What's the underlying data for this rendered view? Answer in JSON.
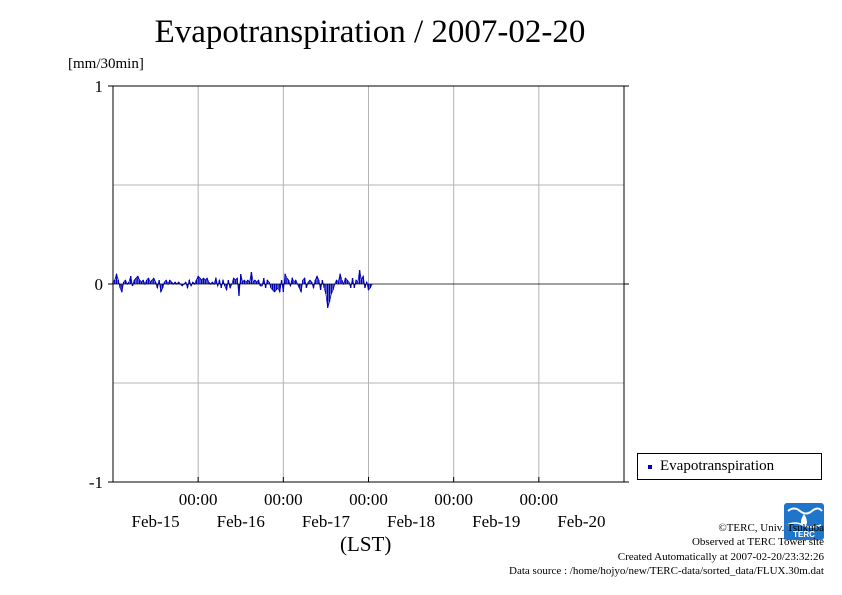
{
  "title": "Evapotranspiration / 2007-02-20",
  "y_unit": "[mm/30min]",
  "x_unit": "(LST)",
  "colors": {
    "series": "#0000bb",
    "grid": "#b4b4b4",
    "axis": "#000000",
    "logo": "#1f75c9"
  },
  "legend": {
    "label": "Evapotranspiration"
  },
  "credits": {
    "line1": "©TERC, Univ. Tsukuba",
    "line2": "Observed at TERC Tower site",
    "line3": "Created Automatically at 2007-02-20/23:32:26",
    "line4": "Data source : /home/hojyo/new/TERC-data/sorted_data/FLUX.30m.dat"
  },
  "logo_text": "TERC",
  "chart_data": {
    "type": "bar",
    "ylim": [
      -1,
      1
    ],
    "yticks": [
      -1,
      0,
      1
    ],
    "y_grid": [
      -0.5,
      0.5
    ],
    "xlim": [
      "2007-02-14T00:00",
      "2007-02-20T00:00"
    ],
    "x_time_labels": [
      "00:00",
      "00:00",
      "00:00",
      "00:00",
      "00:00"
    ],
    "x_date_labels": [
      "Feb-15",
      "Feb-16",
      "Feb-17",
      "Feb-18",
      "Feb-19",
      "Feb-20"
    ],
    "x_grid": [
      "2007-02-15T00:00",
      "2007-02-16T00:00",
      "2007-02-17T00:00",
      "2007-02-18T00:00",
      "2007-02-19T00:00"
    ],
    "legend_position": "bottom-right outside",
    "grid": true,
    "series": [
      {
        "name": "Evapotranspiration",
        "start": "2007-02-14T00:00",
        "interval_min": 30,
        "values": [
          0.01,
          0.02,
          0.05,
          0.02,
          -0.02,
          -0.04,
          0.01,
          0.02,
          0.0,
          0.01,
          0.04,
          -0.01,
          0.02,
          0.03,
          0.04,
          0.02,
          0.01,
          0.02,
          0.0,
          0.02,
          0.03,
          0.01,
          0.02,
          0.03,
          0.01,
          -0.02,
          0.02,
          -0.04,
          -0.02,
          0.01,
          0.02,
          0.0,
          0.02,
          0.01,
          0.0,
          0.01,
          0.0,
          0.01,
          0.0,
          -0.01,
          0.0,
          0.01,
          -0.02,
          0.02,
          -0.01,
          0.01,
          0.0,
          0.02,
          0.04,
          0.03,
          0.02,
          0.03,
          0.02,
          0.03,
          0.01,
          0.0,
          0.01,
          0.0,
          0.03,
          -0.01,
          0.02,
          -0.02,
          0.02,
          -0.01,
          -0.03,
          0.02,
          -0.02,
          0.0,
          0.03,
          0.02,
          0.03,
          -0.06,
          0.05,
          0.01,
          0.02,
          0.01,
          0.02,
          0.01,
          0.06,
          0.01,
          0.02,
          0.01,
          0.02,
          -0.01,
          -0.01,
          0.03,
          -0.02,
          0.02,
          0.01,
          -0.02,
          -0.03,
          -0.04,
          -0.03,
          -0.02,
          -0.04,
          0.02,
          -0.04,
          0.05,
          0.03,
          0.02,
          -0.01,
          0.03,
          0.01,
          0.02,
          0.0,
          -0.02,
          -0.04,
          0.02,
          0.03,
          -0.02,
          0.01,
          0.02,
          0.01,
          -0.02,
          0.02,
          0.04,
          0.02,
          -0.03,
          0.02,
          -0.02,
          -0.05,
          -0.12,
          -0.09,
          -0.05,
          -0.03,
          0.0,
          0.02,
          0.01,
          0.05,
          0.02,
          0.0,
          0.03,
          0.02,
          0.01,
          -0.02,
          0.03,
          -0.02,
          0.02,
          0.01,
          0.07,
          0.02,
          0.04,
          -0.02,
          0.01,
          -0.03,
          -0.02,
          0.0
        ]
      }
    ]
  }
}
